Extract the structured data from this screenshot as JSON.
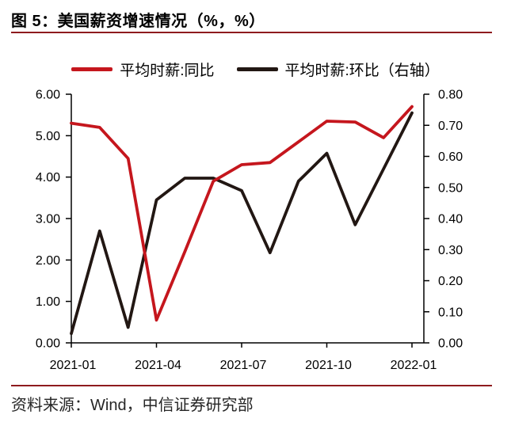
{
  "header": {
    "title": "图 5：美国薪资增速情况（%，%）"
  },
  "legend": {
    "items": [
      {
        "label": "平均时薪:同比"
      },
      {
        "label": "平均时薪:环比（右轴）"
      }
    ]
  },
  "source": {
    "text": "资料来源：Wind，中信证券研究部"
  },
  "colors": {
    "accent_rule": "#8e1b1e",
    "yoy_line": "#c5161d",
    "mom_line": "#221713",
    "axis": "#000000"
  },
  "chart_data": {
    "type": "line",
    "title": "美国薪资增速情况（%，%）",
    "x": [
      "2021-01",
      "2021-02",
      "2021-03",
      "2021-04",
      "2021-05",
      "2021-06",
      "2021-07",
      "2021-08",
      "2021-09",
      "2021-10",
      "2021-11",
      "2021-12",
      "2022-01"
    ],
    "series": [
      {
        "name": "平均时薪:同比",
        "axis": "left",
        "color": "#c5161d",
        "values": [
          5.3,
          5.2,
          4.45,
          0.55,
          2.2,
          3.9,
          4.3,
          4.35,
          4.85,
          5.35,
          5.33,
          4.95,
          5.7
        ]
      },
      {
        "name": "平均时薪:环比（右轴）",
        "axis": "right",
        "color": "#221713",
        "values": [
          0.03,
          0.36,
          0.05,
          0.46,
          0.53,
          0.53,
          0.49,
          0.29,
          0.52,
          0.61,
          0.38,
          0.56,
          0.74
        ]
      }
    ],
    "left_ylim": [
      0,
      6.0
    ],
    "right_ylim": [
      0,
      0.8
    ],
    "left_ticks": [
      "6.00",
      "5.00",
      "4.00",
      "3.00",
      "2.00",
      "1.00",
      "0.00"
    ],
    "right_ticks": [
      "0.80",
      "0.70",
      "0.60",
      "0.50",
      "0.40",
      "0.30",
      "0.20",
      "0.10",
      "0.00"
    ],
    "x_tick_labels": [
      "2021-01",
      "2021-04",
      "2021-07",
      "2021-10",
      "2022-01"
    ],
    "x_tick_indices": [
      0,
      3,
      6,
      9,
      12
    ],
    "grid": false,
    "legend_position": "top"
  }
}
